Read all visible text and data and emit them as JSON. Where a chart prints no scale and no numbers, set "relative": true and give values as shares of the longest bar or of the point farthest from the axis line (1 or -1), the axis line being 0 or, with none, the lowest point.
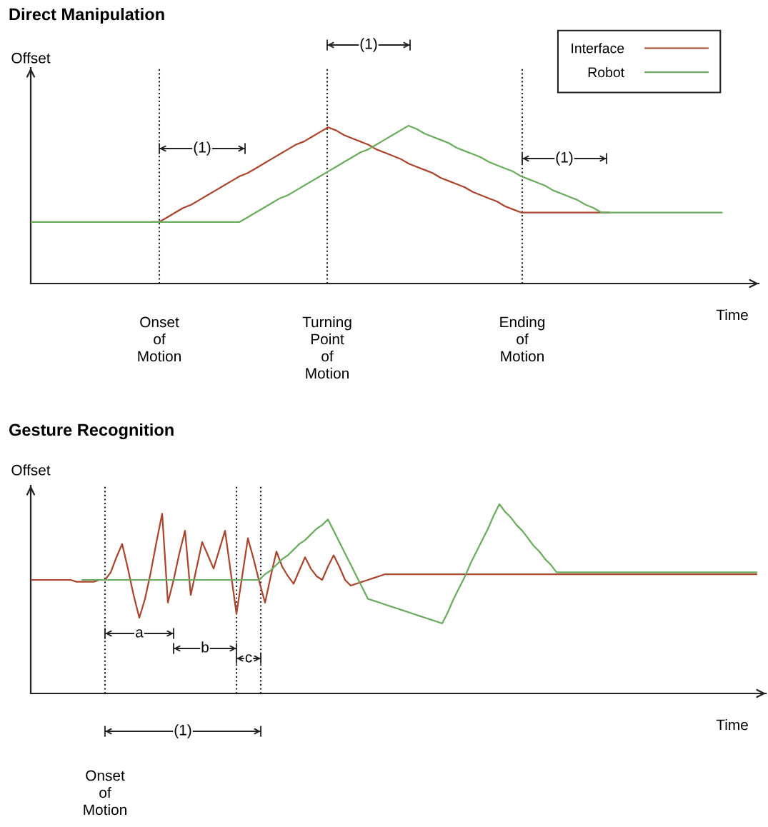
{
  "chart_data": [
    {
      "type": "line",
      "title": "Direct Manipulation",
      "xlabel": "Time",
      "ylabel": "Offset",
      "relative": true,
      "legend": "top right",
      "categories": [
        null,
        null,
        null,
        null,
        null,
        null,
        null,
        null,
        null,
        null,
        null,
        null,
        null,
        null,
        null,
        null,
        null,
        null,
        null,
        null,
        null,
        null,
        null,
        null,
        null,
        null,
        null,
        null,
        null,
        null,
        null,
        null,
        null,
        null,
        null,
        null,
        null,
        null,
        null,
        null,
        null,
        null,
        null,
        null,
        null,
        null,
        null,
        null,
        null,
        null,
        null,
        null,
        null,
        null,
        null,
        null,
        null,
        null,
        null,
        null,
        null,
        null,
        null,
        null,
        null,
        null,
        null,
        null,
        null,
        null,
        null,
        null,
        null,
        null,
        null,
        null,
        null,
        null,
        null,
        null,
        null,
        null,
        null,
        null,
        null,
        null,
        null
      ],
      "series": [
        {
          "name": "Interface",
          "color": "#a9452c",
          "values": [
            null,
            null,
            null,
            null,
            null,
            null,
            null,
            null,
            null,
            null,
            null,
            null,
            null,
            null,
            null,
            0.39,
            0.39,
            0.42,
            0.45,
            0.48,
            0.5,
            0.53,
            0.56,
            0.59,
            0.62,
            0.65,
            0.68,
            0.7,
            0.73,
            0.76,
            0.79,
            0.82,
            0.85,
            0.88,
            0.9,
            0.93,
            0.96,
            0.99,
            0.97,
            0.94,
            0.92,
            0.9,
            0.88,
            0.85,
            0.83,
            0.81,
            0.79,
            0.76,
            0.74,
            0.72,
            0.7,
            0.67,
            0.65,
            0.63,
            0.61,
            0.58,
            0.56,
            0.54,
            0.52,
            0.49,
            0.47,
            0.45,
            0.45,
            0.45,
            0.45,
            0.45,
            0.45,
            0.45,
            0.45,
            0.45,
            0.45,
            0.45,
            0.45,
            null,
            null,
            null,
            null,
            null,
            null,
            null,
            null,
            null,
            null,
            null,
            null,
            null,
            null
          ]
        },
        {
          "name": "Robot",
          "color": "#6aab5e",
          "values": [
            0.39,
            0.39,
            0.39,
            0.39,
            0.39,
            0.39,
            0.39,
            0.39,
            0.39,
            0.39,
            0.39,
            0.39,
            0.39,
            0.39,
            0.39,
            0.39,
            0.39,
            0.39,
            0.39,
            0.39,
            0.39,
            0.39,
            0.39,
            0.39,
            0.39,
            0.39,
            0.39,
            0.42,
            0.45,
            0.48,
            0.51,
            0.54,
            0.56,
            0.59,
            0.62,
            0.65,
            0.68,
            0.71,
            0.74,
            0.77,
            0.8,
            0.83,
            0.85,
            0.88,
            0.91,
            0.94,
            0.97,
            1.0,
            0.98,
            0.95,
            0.93,
            0.91,
            0.89,
            0.86,
            0.84,
            0.82,
            0.8,
            0.77,
            0.75,
            0.73,
            0.71,
            0.68,
            0.66,
            0.64,
            0.62,
            0.59,
            0.57,
            0.55,
            0.53,
            0.5,
            0.48,
            0.45,
            0.45,
            0.45,
            0.45,
            0.45,
            0.45,
            0.45,
            0.45,
            0.45,
            0.45,
            0.45,
            0.45,
            0.45,
            0.45,
            0.45,
            0.45
          ]
        }
      ],
      "annotations": [
        "Onset\nof\nMotion",
        "Turning\nPoint\nof\nMotion",
        "Ending\nof\nMotion",
        "(1)",
        "(1)",
        "(1)"
      ]
    },
    {
      "type": "line",
      "title": "Gesture Recognition",
      "xlabel": "Time",
      "ylabel": "Offset",
      "relative": true,
      "categories": [
        null,
        null,
        null,
        null,
        null,
        null,
        null,
        null,
        null,
        null,
        null,
        null,
        null,
        null,
        null,
        null,
        null,
        null,
        null,
        null,
        null,
        null,
        null,
        null,
        null,
        null,
        null,
        null,
        null,
        null,
        null,
        null,
        null,
        null,
        null,
        null,
        null,
        null,
        null,
        null,
        null,
        null,
        null,
        null,
        null,
        null,
        null,
        null,
        null,
        null,
        null,
        null,
        null,
        null,
        null,
        null,
        null,
        null,
        null,
        null,
        null,
        null,
        null,
        null,
        null,
        null,
        null,
        null,
        null,
        null,
        null,
        null,
        null,
        null,
        null,
        null,
        null,
        null,
        null,
        null,
        null,
        null,
        null,
        null,
        null,
        null,
        null,
        null,
        null,
        null,
        null,
        null,
        null,
        null,
        null,
        null,
        null,
        null,
        null,
        null,
        null,
        null,
        null,
        null,
        null,
        null,
        null,
        null,
        null,
        null,
        null,
        null,
        null,
        null,
        null,
        null,
        null,
        null,
        null,
        null,
        null,
        null,
        null,
        null,
        null,
        null,
        null,
        null
      ],
      "series": [
        {
          "color": "#a9452c",
          "values": [
            0.6,
            0.6,
            0.6,
            0.6,
            0.6,
            0.6,
            0.6,
            0.6,
            0.59,
            0.59,
            0.59,
            0.59,
            0.6,
            0.6,
            0.64,
            0.72,
            0.79,
            0.66,
            0.52,
            0.4,
            0.5,
            0.64,
            0.8,
            0.95,
            0.48,
            0.6,
            0.74,
            0.86,
            0.52,
            0.66,
            0.8,
            0.73,
            0.66,
            0.76,
            0.86,
            0.64,
            0.42,
            0.62,
            0.82,
            0.71,
            0.59,
            0.48,
            0.62,
            0.75,
            0.67,
            0.62,
            0.58,
            0.65,
            0.72,
            0.66,
            0.62,
            0.6,
            0.67,
            0.73,
            0.67,
            0.6,
            0.57,
            0.58,
            0.59,
            0.6,
            0.61,
            0.62,
            0.63,
            0.63,
            0.63,
            0.63,
            0.63,
            0.63,
            0.63,
            0.63,
            0.63,
            0.63,
            0.63,
            0.63,
            0.63,
            0.63,
            0.63,
            0.63,
            0.63,
            0.63,
            0.63,
            0.63,
            0.63,
            0.63,
            0.63,
            0.63,
            0.63,
            0.63,
            0.63,
            0.63,
            0.63,
            0.63,
            0.63,
            0.63,
            0.63,
            0.63,
            0.63,
            0.63,
            0.63,
            0.63,
            0.63,
            0.63,
            0.63,
            0.63,
            0.63,
            0.63,
            0.63,
            0.63,
            0.63,
            0.63,
            0.63,
            0.63,
            0.63,
            0.63,
            0.63,
            0.63,
            0.63,
            0.63,
            0.63,
            0.63,
            0.63,
            0.63,
            0.63,
            0.63,
            0.63,
            0.63,
            0.63,
            0.63
          ]
        },
        {
          "color": "#6aab5e",
          "values": [
            null,
            null,
            null,
            null,
            null,
            null,
            null,
            null,
            null,
            0.6,
            0.6,
            0.6,
            0.6,
            0.6,
            0.6,
            0.6,
            0.6,
            0.6,
            0.6,
            0.6,
            0.6,
            0.6,
            0.6,
            0.6,
            0.6,
            0.6,
            0.6,
            0.6,
            0.6,
            0.6,
            0.6,
            0.6,
            0.6,
            0.6,
            0.6,
            0.6,
            0.6,
            0.6,
            0.6,
            0.6,
            0.6,
            0.63,
            0.65,
            0.68,
            0.71,
            0.73,
            0.76,
            0.79,
            0.81,
            0.84,
            0.87,
            0.89,
            0.92,
            0.86,
            0.8,
            0.74,
            0.68,
            0.62,
            0.56,
            0.5,
            0.49,
            0.48,
            0.47,
            0.46,
            0.45,
            0.44,
            0.43,
            0.42,
            0.41,
            0.4,
            0.39,
            0.38,
            0.37,
            0.43,
            0.5,
            0.56,
            0.62,
            0.69,
            0.75,
            0.81,
            0.87,
            0.94,
            1.0,
            0.96,
            0.93,
            0.89,
            0.86,
            0.82,
            0.78,
            0.75,
            0.71,
            0.68,
            0.64,
            0.64,
            0.64,
            0.64,
            0.64,
            0.64,
            0.64,
            0.64,
            0.64,
            0.64,
            0.64,
            0.64,
            0.64,
            0.64,
            0.64,
            0.64,
            0.64,
            0.64,
            0.64,
            0.64,
            0.64,
            0.64,
            0.64,
            0.64,
            0.64,
            0.64,
            0.64,
            0.64,
            0.64,
            0.64,
            0.64,
            0.64,
            0.64,
            0.64,
            0.64,
            0.64
          ]
        }
      ],
      "annotations": [
        "Onset\nof\nMotion",
        "a",
        "b",
        "c",
        "(1)"
      ]
    }
  ]
}
